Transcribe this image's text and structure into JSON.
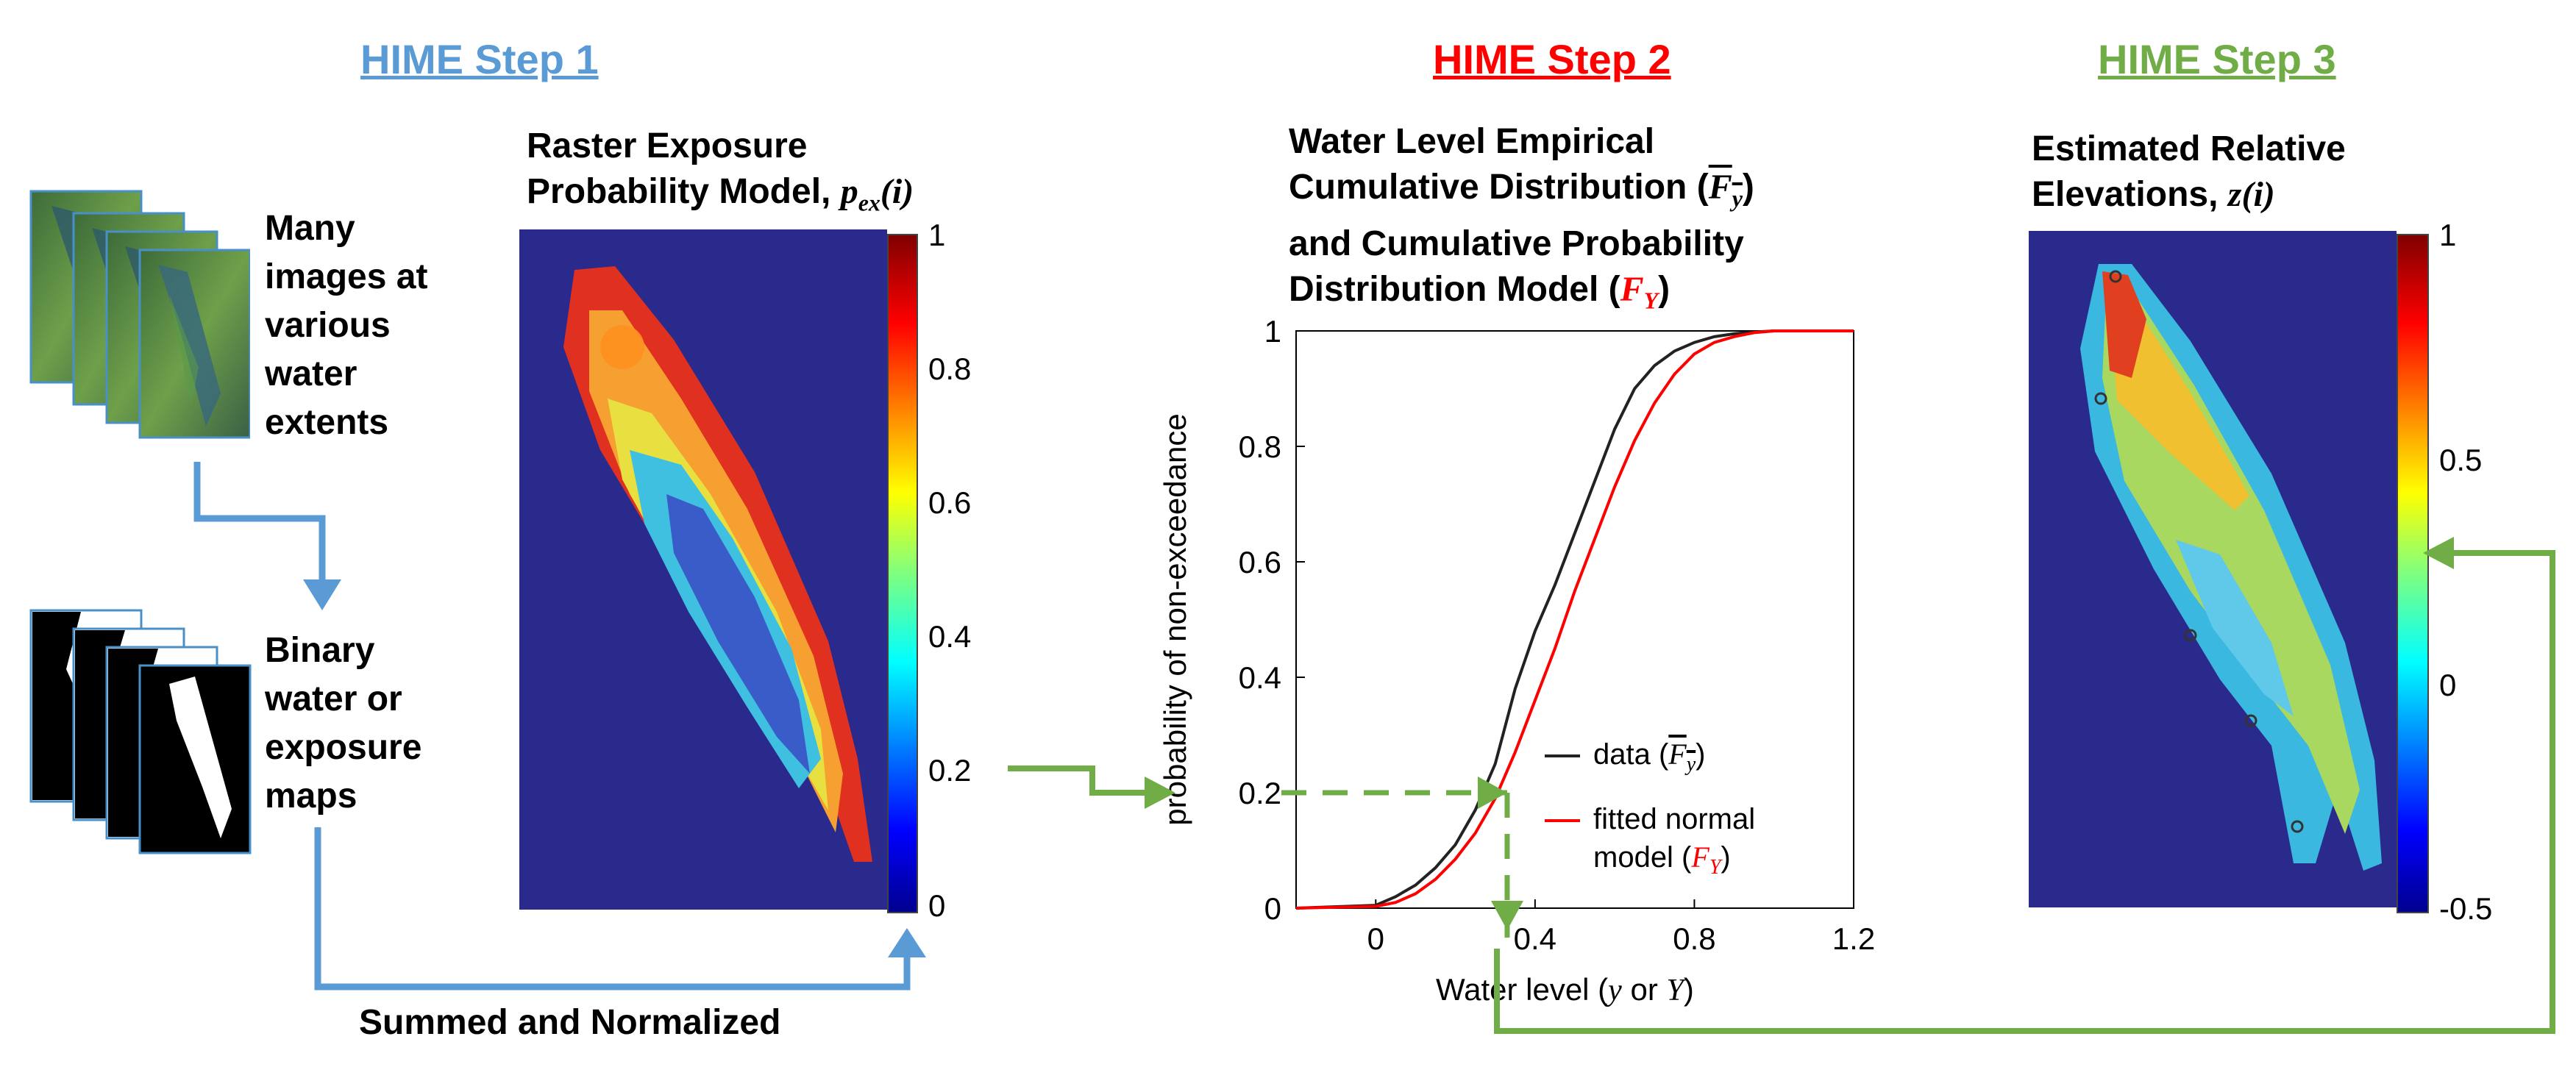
{
  "step1": {
    "title": "HIME Step 1",
    "color": "#5b9bd5",
    "images_label": [
      "Many",
      "images at",
      "various",
      "water",
      "extents"
    ],
    "binary_label": [
      "Binary",
      "water or",
      "exposure",
      "maps"
    ],
    "raster_title_1": "Raster Exposure",
    "raster_title_2": "Probability Model,",
    "raster_symbol": "p",
    "raster_symbol_sub": "ex",
    "raster_symbol_arg": "(i)",
    "colorbar_ticks": [
      "1",
      "0.8",
      "0.6",
      "0.4",
      "0.2",
      "0"
    ],
    "summed_label": "Summed and Normalized"
  },
  "step2": {
    "title": "HIME Step 2",
    "color": "#ff0000",
    "plot_title_1": "Water Level Empirical",
    "plot_title_2": "Cumulative Distribution (",
    "plot_title_2_symbol": "F",
    "plot_title_2_sub": "y",
    "plot_title_3": "and Cumulative Probability",
    "plot_title_4": "Distribution Model (",
    "plot_title_4_symbol": "F",
    "plot_title_4_sub": "Y",
    "close_paren": ")"
  },
  "step3": {
    "title": "HIME Step 3",
    "color": "#70ad47",
    "title_1": "Estimated Relative",
    "title_2": "Elevations,",
    "symbol": "z(i)",
    "colorbar_ticks": [
      "1",
      "0.5",
      "0",
      "-0.5"
    ]
  },
  "chart_data": {
    "type": "line",
    "xlabel_prefix": "Water level (",
    "xlabel_y": "y",
    "xlabel_or": " or ",
    "xlabel_Y": "Y",
    "xlabel_suffix": ")",
    "ylabel": "probability of non-exceedance",
    "xlim": [
      -0.2,
      1.2
    ],
    "ylim": [
      0,
      1
    ],
    "x_ticks": [
      "0",
      "0.4",
      "0.8",
      "1.2"
    ],
    "y_ticks": [
      "0",
      "0.2",
      "0.4",
      "0.6",
      "0.8",
      "1"
    ],
    "series": [
      {
        "name": "data",
        "color": "#222222",
        "x": [
          -0.2,
          0.0,
          0.05,
          0.1,
          0.15,
          0.2,
          0.25,
          0.3,
          0.35,
          0.4,
          0.45,
          0.5,
          0.55,
          0.6,
          0.65,
          0.7,
          0.75,
          0.8,
          0.85,
          0.9,
          0.95,
          1.0,
          1.2
        ],
        "y": [
          0.0,
          0.005,
          0.02,
          0.04,
          0.07,
          0.11,
          0.17,
          0.25,
          0.38,
          0.48,
          0.56,
          0.65,
          0.74,
          0.83,
          0.9,
          0.94,
          0.965,
          0.98,
          0.99,
          0.995,
          0.998,
          1.0,
          1.0
        ]
      },
      {
        "name": "fitted normal",
        "color": "#ff0000",
        "x": [
          -0.2,
          0.0,
          0.05,
          0.1,
          0.15,
          0.2,
          0.25,
          0.3,
          0.35,
          0.4,
          0.45,
          0.5,
          0.55,
          0.6,
          0.65,
          0.7,
          0.75,
          0.8,
          0.85,
          0.9,
          0.95,
          1.0,
          1.2
        ],
        "y": [
          0.0,
          0.003,
          0.01,
          0.025,
          0.05,
          0.085,
          0.13,
          0.19,
          0.27,
          0.36,
          0.45,
          0.55,
          0.64,
          0.73,
          0.81,
          0.875,
          0.925,
          0.96,
          0.98,
          0.99,
          0.997,
          1.0,
          1.0
        ]
      }
    ],
    "legend": {
      "data_label": "data (",
      "data_symbol": "F",
      "data_sub": "y",
      "fit_label_1": "fitted normal",
      "fit_label_2": "model (",
      "fit_symbol": "F",
      "fit_sub": "Y",
      "close": ")"
    },
    "annotation": {
      "probability": 0.2,
      "water_level": 0.33
    }
  }
}
